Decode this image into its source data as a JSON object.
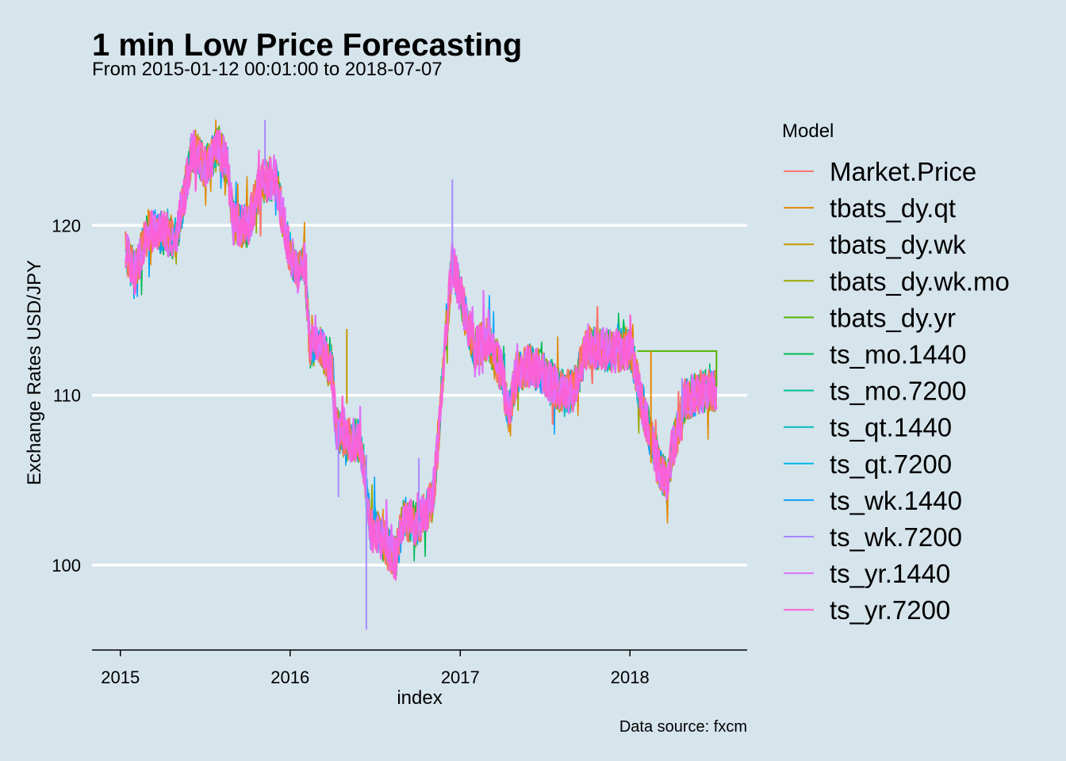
{
  "chart_data": {
    "type": "line",
    "title": "1 min Low Price Forecasting",
    "subtitle": "From 2015-01-12 00:01:00 to 2018-07-07",
    "xlabel": "index",
    "ylabel": "Exchange Rates USD/JPY",
    "caption": "Data source: fxcm",
    "legend_title": "Model",
    "legend_position": "right",
    "grid": "horizontal major only",
    "xlim": [
      "2014-11-01",
      "2018-09-10"
    ],
    "ylim": [
      95.0,
      127.2
    ],
    "x_ticks": [
      {
        "value": "2015-01-01",
        "label": "2015"
      },
      {
        "value": "2016-01-01",
        "label": "2016"
      },
      {
        "value": "2017-01-01",
        "label": "2017"
      },
      {
        "value": "2018-01-01",
        "label": "2018"
      }
    ],
    "y_ticks": [
      100,
      110,
      120
    ],
    "market_price": {
      "x": [
        "2015-01-12",
        "2015-02-01",
        "2015-03-01",
        "2015-04-01",
        "2015-05-01",
        "2015-06-01",
        "2015-06-10",
        "2015-07-01",
        "2015-08-01",
        "2015-08-20",
        "2015-09-01",
        "2015-10-01",
        "2015-11-01",
        "2015-12-01",
        "2016-01-01",
        "2016-01-20",
        "2016-02-01",
        "2016-02-12",
        "2016-03-01",
        "2016-04-01",
        "2016-04-08",
        "2016-05-01",
        "2016-06-01",
        "2016-06-24",
        "2016-07-01",
        "2016-08-01",
        "2016-08-15",
        "2016-09-01",
        "2016-10-01",
        "2016-11-01",
        "2016-11-09",
        "2016-12-01",
        "2016-12-15",
        "2017-01-01",
        "2017-02-01",
        "2017-03-01",
        "2017-04-01",
        "2017-04-15",
        "2017-05-01",
        "2017-06-01",
        "2017-07-01",
        "2017-08-01",
        "2017-09-01",
        "2017-10-01",
        "2017-11-01",
        "2017-12-01",
        "2018-01-01",
        "2018-02-01",
        "2018-03-01",
        "2018-03-23",
        "2018-04-01",
        "2018-05-01",
        "2018-06-01",
        "2018-07-06"
      ],
      "y": [
        118.4,
        117.2,
        119.7,
        119.6,
        119.2,
        123.9,
        124.4,
        123.5,
        124.6,
        123.4,
        120.1,
        119.9,
        122.6,
        122.7,
        118.3,
        117.1,
        117.8,
        112.8,
        113.2,
        111.4,
        108.1,
        107.4,
        107.3,
        101.7,
        102.2,
        100.9,
        100.4,
        102.8,
        102.4,
        103.7,
        105.5,
        113.6,
        117.9,
        116.0,
        112.7,
        113.3,
        111.3,
        108.8,
        111.2,
        111.8,
        111.2,
        110.3,
        110.2,
        112.9,
        112.7,
        112.6,
        112.8,
        109.0,
        106.0,
        104.8,
        106.6,
        109.8,
        110.2,
        110.4
      ]
    },
    "forecast_segments": [
      {
        "name": "tbats_dy.yr",
        "points": [
          [
            "2018-01-17",
            112.6
          ],
          [
            "2018-07-06",
            112.6
          ],
          [
            "2018-07-06",
            110.5
          ]
        ]
      },
      {
        "name": "tbats_dy.qt",
        "points": [
          [
            "2018-02-15",
            112.6
          ],
          [
            "2018-02-15",
            106.0
          ]
        ]
      }
    ],
    "spikes": [
      {
        "name": "ts_wk.7200",
        "x": "2015-11-08",
        "y": [
          123.5,
          126.2
        ]
      },
      {
        "name": "ts_wk.7200",
        "x": "2016-06-13",
        "y": [
          96.2,
          106.5
        ]
      },
      {
        "name": "ts_wk.7200",
        "x": "2016-12-15",
        "y": [
          117.0,
          122.7
        ]
      },
      {
        "name": "ts_wk.7200",
        "x": "2016-04-14",
        "y": [
          104.0,
          108.5
        ]
      },
      {
        "name": "ts_wk.7200",
        "x": "2016-10-04",
        "y": [
          102.5,
          106.3
        ]
      },
      {
        "name": "ts_wk.7200",
        "x": "2018-04-23",
        "y": [
          108.5,
          111.0
        ]
      },
      {
        "name": "tbats_dy.wk",
        "x": "2016-05-02",
        "y": [
          109.5,
          113.9
        ]
      }
    ],
    "series": [
      {
        "name": "Market.Price",
        "color": "#F8766D"
      },
      {
        "name": "tbats_dy.qt",
        "color": "#E38900"
      },
      {
        "name": "tbats_dy.wk",
        "color": "#C49A00"
      },
      {
        "name": "tbats_dy.wk.mo",
        "color": "#99A800"
      },
      {
        "name": "tbats_dy.yr",
        "color": "#53B400"
      },
      {
        "name": "ts_mo.1440",
        "color": "#00BC56"
      },
      {
        "name": "ts_mo.7200",
        "color": "#00C094"
      },
      {
        "name": "ts_qt.1440",
        "color": "#00BFC4"
      },
      {
        "name": "ts_qt.7200",
        "color": "#00B6EB"
      },
      {
        "name": "ts_wk.1440",
        "color": "#06A4FF"
      },
      {
        "name": "ts_wk.7200",
        "color": "#A58AFF"
      },
      {
        "name": "ts_yr.1440",
        "color": "#DF70F8"
      },
      {
        "name": "ts_yr.7200",
        "color": "#FB61D7"
      }
    ]
  }
}
